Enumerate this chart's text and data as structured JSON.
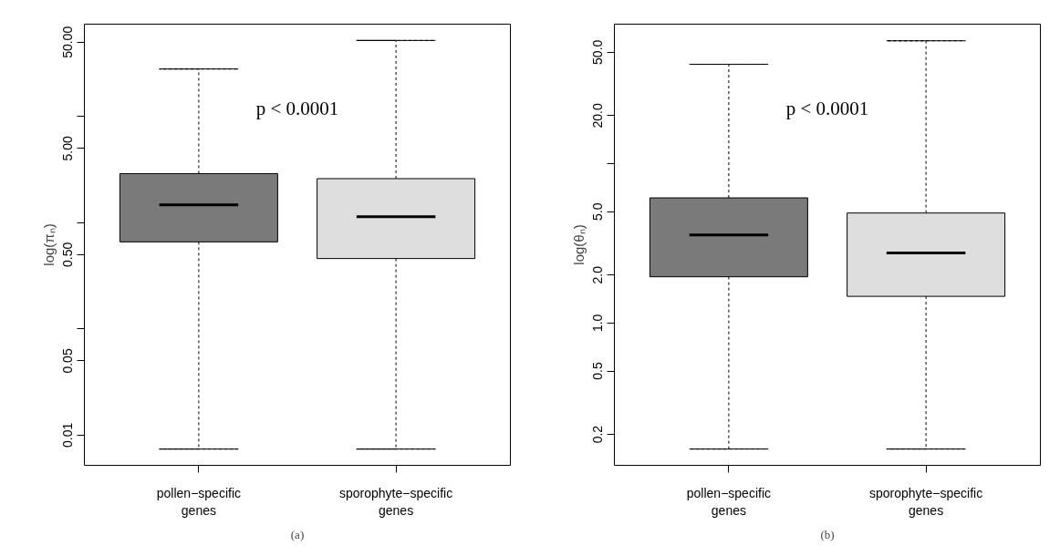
{
  "chart_data": [
    {
      "type": "box",
      "ylabel": "log(πₙ)",
      "categories": [
        "pollen−specific\ngenes",
        "sporophyte−specific\ngenes"
      ],
      "colors": [
        "#7a7a7a",
        "#dedede"
      ],
      "boxes": [
        {
          "low": 0.0074,
          "q1": 0.66,
          "median": 1.47,
          "q3": 2.9,
          "high": 28
        },
        {
          "low": 0.0074,
          "q1": 0.46,
          "median": 1.14,
          "q3": 2.6,
          "high": 52
        }
      ],
      "log": true,
      "grid": false,
      "ylim": [
        0.0052,
        74
      ],
      "yticks": [
        {
          "value": 0.01,
          "label": "0.01"
        },
        {
          "value": 0.05,
          "label": "0.05"
        },
        {
          "value": 0.1,
          "label": null
        },
        {
          "value": 0.5,
          "label": "0.50"
        },
        {
          "value": 1,
          "label": null
        },
        {
          "value": 5,
          "label": "5.00"
        },
        {
          "value": 10,
          "label": null
        },
        {
          "value": 50,
          "label": "50.00"
        }
      ],
      "annotations": [
        "p < 0.0001",
        "(a)"
      ]
    },
    {
      "type": "box",
      "ylabel": "log(θₙ)",
      "categories": [
        "pollen−specific\ngenes",
        "sporophyte−specific\ngenes"
      ],
      "colors": [
        "#7a7a7a",
        "#dedede"
      ],
      "boxes": [
        {
          "low": 0.162,
          "q1": 1.95,
          "median": 3.57,
          "q3": 6.1,
          "high": 42
        },
        {
          "low": 0.162,
          "q1": 1.47,
          "median": 2.75,
          "q3": 4.9,
          "high": 59
        }
      ],
      "log": true,
      "grid": false,
      "ylim": [
        0.128,
        75
      ],
      "yticks": [
        {
          "value": 0.2,
          "label": "0.2"
        },
        {
          "value": 0.5,
          "label": "0.5"
        },
        {
          "value": 1,
          "label": "1.0"
        },
        {
          "value": 2,
          "label": "2.0"
        },
        {
          "value": 5,
          "label": "5.0"
        },
        {
          "value": 10,
          "label": null
        },
        {
          "value": 20,
          "label": "20.0"
        },
        {
          "value": 50,
          "label": "50.0"
        }
      ],
      "annotations": [
        "p < 0.0001",
        "(b)"
      ]
    }
  ]
}
